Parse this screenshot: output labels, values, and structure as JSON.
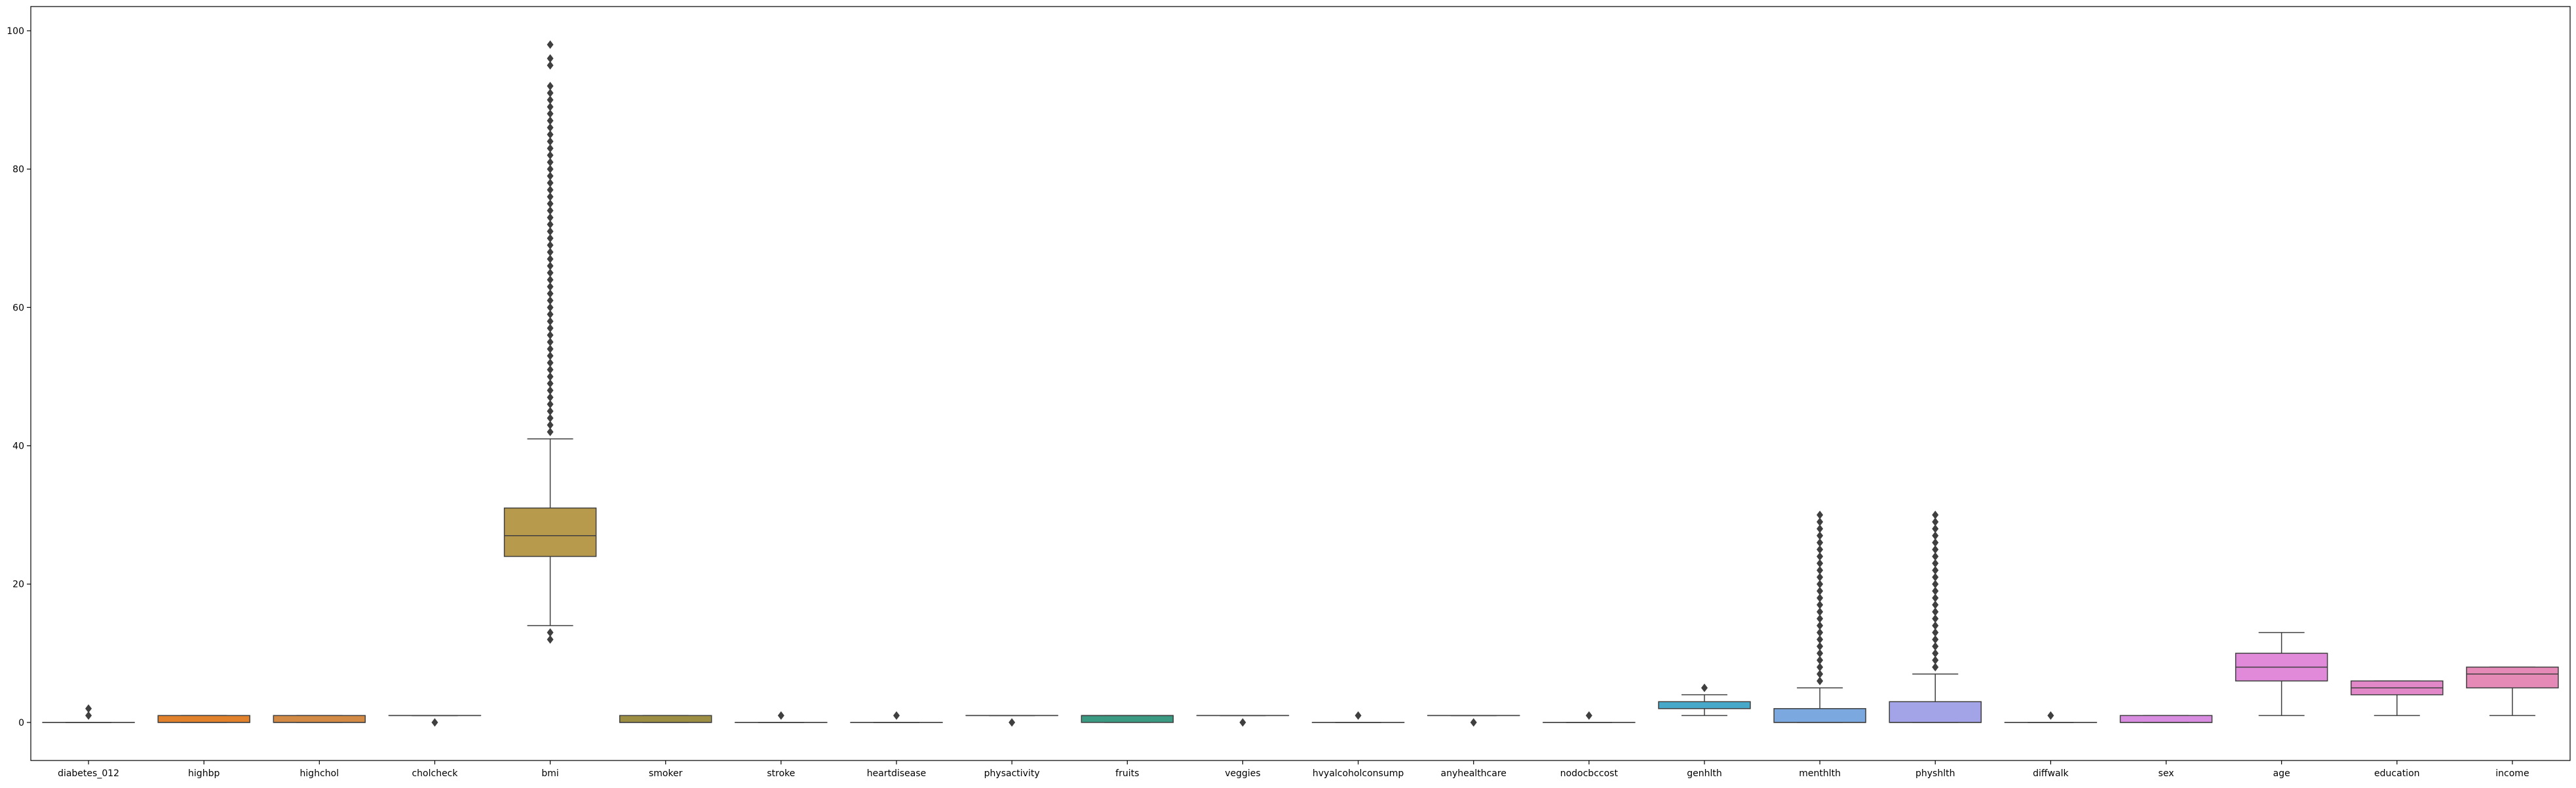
{
  "chart_data": {
    "type": "box",
    "title": "",
    "xlabel": "",
    "ylabel": "",
    "ylim": [
      -5.5,
      103.5
    ],
    "yticks": [
      0,
      20,
      40,
      60,
      80,
      100
    ],
    "grid": false,
    "legend": "none",
    "categories": [
      "diabetes_012",
      "highbp",
      "highchol",
      "cholcheck",
      "bmi",
      "smoker",
      "stroke",
      "heartdisease",
      "physactivity",
      "fruits",
      "veggies",
      "hvyalcoholconsump",
      "anyhealthcare",
      "nodocbccost",
      "genhlth",
      "menthlth",
      "physhlth",
      "diffwalk",
      "sex",
      "age",
      "education",
      "income"
    ],
    "boxes": [
      {
        "q1": 0,
        "median": 0,
        "q3": 0,
        "whisker_low": 0,
        "whisker_high": 0,
        "outliers": [
          1,
          2
        ]
      },
      {
        "q1": 0,
        "median": 0,
        "q3": 1,
        "whisker_low": 0,
        "whisker_high": 1,
        "outliers": []
      },
      {
        "q1": 0,
        "median": 0,
        "q3": 1,
        "whisker_low": 0,
        "whisker_high": 1,
        "outliers": []
      },
      {
        "q1": 1,
        "median": 1,
        "q3": 1,
        "whisker_low": 1,
        "whisker_high": 1,
        "outliers": [
          0
        ]
      },
      {
        "q1": 24,
        "median": 27,
        "q3": 31,
        "whisker_low": 14,
        "whisker_high": 41,
        "outliers": [
          12,
          13,
          42,
          43,
          44,
          45,
          46,
          47,
          48,
          49,
          50,
          51,
          52,
          53,
          54,
          55,
          56,
          57,
          58,
          59,
          60,
          61,
          62,
          63,
          64,
          65,
          66,
          67,
          68,
          69,
          70,
          71,
          72,
          73,
          74,
          75,
          76,
          77,
          78,
          79,
          80,
          81,
          82,
          83,
          84,
          85,
          86,
          87,
          88,
          89,
          90,
          91,
          92,
          95,
          96,
          98
        ]
      },
      {
        "q1": 0,
        "median": 0,
        "q3": 1,
        "whisker_low": 0,
        "whisker_high": 1,
        "outliers": []
      },
      {
        "q1": 0,
        "median": 0,
        "q3": 0,
        "whisker_low": 0,
        "whisker_high": 0,
        "outliers": [
          1
        ]
      },
      {
        "q1": 0,
        "median": 0,
        "q3": 0,
        "whisker_low": 0,
        "whisker_high": 0,
        "outliers": [
          1
        ]
      },
      {
        "q1": 1,
        "median": 1,
        "q3": 1,
        "whisker_low": 1,
        "whisker_high": 1,
        "outliers": [
          0
        ]
      },
      {
        "q1": 0,
        "median": 1,
        "q3": 1,
        "whisker_low": 0,
        "whisker_high": 1,
        "outliers": []
      },
      {
        "q1": 1,
        "median": 1,
        "q3": 1,
        "whisker_low": 1,
        "whisker_high": 1,
        "outliers": [
          0
        ]
      },
      {
        "q1": 0,
        "median": 0,
        "q3": 0,
        "whisker_low": 0,
        "whisker_high": 0,
        "outliers": [
          1
        ]
      },
      {
        "q1": 1,
        "median": 1,
        "q3": 1,
        "whisker_low": 1,
        "whisker_high": 1,
        "outliers": [
          0
        ]
      },
      {
        "q1": 0,
        "median": 0,
        "q3": 0,
        "whisker_low": 0,
        "whisker_high": 0,
        "outliers": [
          1
        ]
      },
      {
        "q1": 2,
        "median": 2,
        "q3": 3,
        "whisker_low": 1,
        "whisker_high": 4,
        "outliers": [
          5
        ]
      },
      {
        "q1": 0,
        "median": 0,
        "q3": 2,
        "whisker_low": 0,
        "whisker_high": 5,
        "outliers": [
          6,
          7,
          8,
          9,
          10,
          11,
          12,
          13,
          14,
          15,
          16,
          17,
          18,
          19,
          20,
          21,
          22,
          23,
          24,
          25,
          26,
          27,
          28,
          29,
          30
        ]
      },
      {
        "q1": 0,
        "median": 0,
        "q3": 3,
        "whisker_low": 0,
        "whisker_high": 7,
        "outliers": [
          8,
          9,
          10,
          11,
          12,
          13,
          14,
          15,
          16,
          17,
          18,
          19,
          20,
          21,
          22,
          23,
          24,
          25,
          26,
          27,
          28,
          29,
          30
        ]
      },
      {
        "q1": 0,
        "median": 0,
        "q3": 0,
        "whisker_low": 0,
        "whisker_high": 0,
        "outliers": [
          1
        ]
      },
      {
        "q1": 0,
        "median": 0,
        "q3": 1,
        "whisker_low": 0,
        "whisker_high": 1,
        "outliers": []
      },
      {
        "q1": 6,
        "median": 8,
        "q3": 10,
        "whisker_low": 1,
        "whisker_high": 13,
        "outliers": []
      },
      {
        "q1": 4,
        "median": 5,
        "q3": 6,
        "whisker_low": 1,
        "whisker_high": 6,
        "outliers": []
      },
      {
        "q1": 5,
        "median": 7,
        "q3": 8,
        "whisker_low": 1,
        "whisker_high": 8,
        "outliers": []
      }
    ],
    "colors": [
      "#3274a1",
      "#e1812c",
      "#3a923a",
      "#c03d3e",
      "#9372b2",
      "#845b53",
      "#d684bd",
      "#7f7f7f",
      "#a9aa35",
      "#2eaaba",
      "#a1c9f4",
      "#ffb482",
      "#8de5a1",
      "#ff9f9b",
      "#d0bbff",
      "#debb9b",
      "#fab0e4",
      "#cfcfcf",
      "#fffea3",
      "#b9f2f0",
      "#e377c2",
      "#e69ac0"
    ],
    "draw_colors": [
      "#3274a1",
      "#e1812c",
      "#d28a45",
      "#c03d3e",
      "#b79a4b",
      "#9c8f43",
      "#5a8f65",
      "#3a9a6d",
      "#3a9a8b",
      "#3b9a82",
      "#3399b0",
      "#3f9cc2",
      "#4298c7",
      "#5a8fcf",
      "#48a8c9",
      "#7ba9df",
      "#a3a3e8",
      "#c49ee8",
      "#d88de0",
      "#e08ad9",
      "#e288c9",
      "#e589b7"
    ]
  }
}
